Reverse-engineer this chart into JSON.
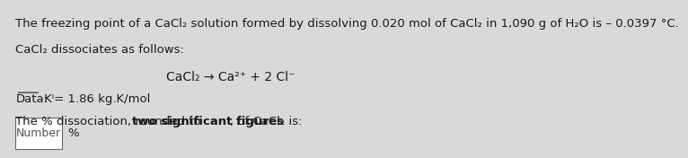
{
  "bg_color": "#d9d9d9",
  "text_color": "#1a1a1a",
  "line1": "The freezing point of a CaCl₂ solution formed by dissolving 0.020 mol of CaCl₂ in 1,090 g of H₂O is – 0.0397 °C.",
  "line2": "CaCl₂ dissociates as follows:",
  "line3": "CaCl₂ → Ca²⁺ + 2 Cl⁻",
  "data_label": "Data:",
  "data_value": " Kⁱ= 1.86 kg.K/mol",
  "line5": "The % dissociation, rounded to ",
  "line5_bold": "two significant figures",
  "line5_end": ", of CaCl₂ is:",
  "box_label": "Number",
  "percent_label": "%",
  "font_size_main": 9.5,
  "font_size_equation": 10
}
